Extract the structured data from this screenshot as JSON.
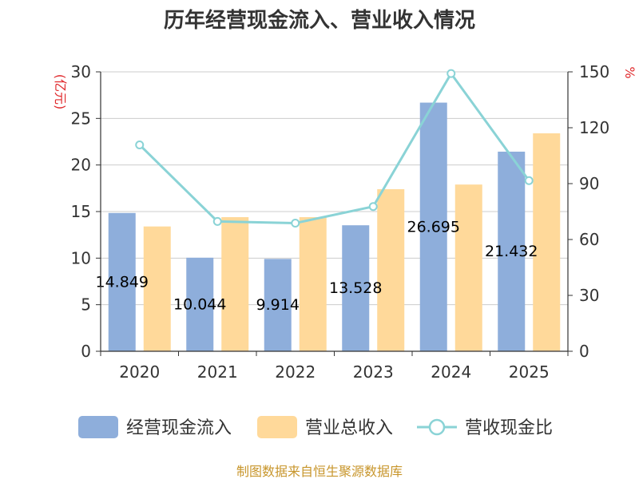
{
  "chart_data": {
    "type": "bar",
    "title": "历年经营现金流入、营业收入情况",
    "categories": [
      "2020",
      "2021",
      "2022",
      "2023",
      "2024",
      "2025"
    ],
    "series": [
      {
        "name": "经营现金流入",
        "kind": "bar",
        "axis": "left",
        "color": "#8eaedb",
        "values": [
          14.849,
          10.044,
          9.914,
          13.528,
          26.695,
          21.432
        ],
        "labels": [
          "14.849",
          "10.044",
          "9.914",
          "13.528",
          "26.695",
          "21.432"
        ]
      },
      {
        "name": "营业总收入",
        "kind": "bar",
        "axis": "left",
        "color": "#ffd99a",
        "values": [
          13.4,
          14.4,
          14.4,
          17.4,
          17.9,
          23.4
        ]
      },
      {
        "name": "营收现金比",
        "kind": "line",
        "axis": "right",
        "color": "#8ad3d6",
        "values": [
          110.8,
          69.7,
          68.8,
          77.7,
          149.1,
          91.6
        ]
      }
    ],
    "y_left": {
      "label": "(亿元)",
      "min": 0,
      "max": 30,
      "ticks": [
        0,
        5,
        10,
        15,
        20,
        25,
        30
      ]
    },
    "y_right": {
      "label": "%",
      "min": 0,
      "max": 150,
      "ticks": [
        0,
        30,
        60,
        90,
        120,
        150
      ]
    },
    "grid": true,
    "legend_position": "bottom"
  },
  "source": "制图数据来自恒生聚源数据库"
}
